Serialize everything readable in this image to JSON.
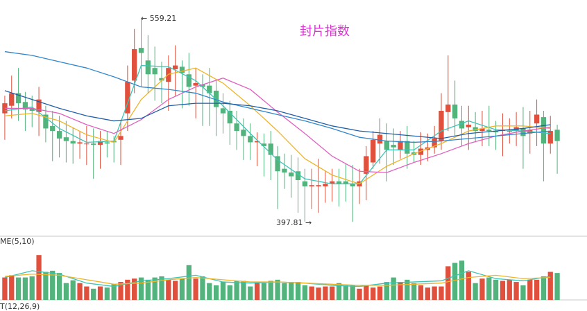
{
  "chart_data": {
    "type": "candlestick",
    "title": "封片指数",
    "title_color": "#d838d0",
    "up_color": "#e0503c",
    "down_color": "#52b47c",
    "ylim": [
      387,
      574
    ],
    "open": [
      484,
      490,
      500,
      493,
      488,
      485,
      483,
      474,
      470,
      465,
      462,
      460,
      460,
      460,
      459,
      461,
      462,
      463,
      484,
      510,
      536,
      526,
      520,
      512,
      509,
      519,
      521,
      515,
      506,
      507,
      506,
      502,
      488,
      486,
      476,
      471,
      466,
      461,
      460,
      460,
      450,
      440,
      437,
      438,
      430,
      426,
      426,
      426,
      428,
      430,
      430,
      428,
      426,
      436,
      445,
      460,
      462,
      459,
      455,
      462,
      453,
      451,
      455,
      457,
      462,
      485,
      491,
      478,
      473,
      473,
      470,
      471,
      470,
      470,
      470,
      470,
      472,
      468,
      476,
      481,
      460,
      471
    ],
    "close": [
      492,
      500,
      492,
      487,
      486,
      495,
      472,
      470,
      464,
      462,
      460,
      461,
      460,
      459,
      462,
      460,
      461,
      466,
      509,
      535,
      532,
      515,
      515,
      510,
      520,
      522,
      516,
      505,
      508,
      505,
      500,
      489,
      484,
      476,
      470,
      466,
      461,
      462,
      458,
      451,
      438,
      437,
      434,
      431,
      426,
      427,
      427,
      428,
      430,
      428,
      428,
      426,
      430,
      450,
      463,
      467,
      455,
      457,
      462,
      452,
      451,
      456,
      457,
      464,
      486,
      491,
      480,
      472,
      475,
      470,
      472,
      470,
      469,
      471,
      470,
      473,
      466,
      471,
      483,
      460,
      470,
      462
    ],
    "high": [
      498,
      514,
      520,
      501,
      498,
      505,
      490,
      486,
      482,
      478,
      473,
      470,
      474,
      472,
      470,
      470,
      466,
      478,
      522,
      551,
      559.21,
      546,
      537,
      525,
      530,
      538,
      526,
      532,
      520,
      515,
      520,
      510,
      500,
      494,
      486,
      480,
      476,
      469,
      468,
      470,
      458,
      452,
      451,
      449,
      440,
      440,
      448,
      438,
      440,
      440,
      444,
      443,
      440,
      458,
      470,
      480,
      476,
      472,
      470,
      474,
      462,
      469,
      468,
      474,
      500,
      530,
      510,
      490,
      490,
      485,
      486,
      490,
      478,
      484,
      480,
      485,
      489,
      486,
      495,
      486,
      482,
      475
    ],
    "low": [
      463,
      480,
      478,
      470,
      473,
      466,
      461,
      446,
      449,
      445,
      444,
      448,
      443,
      432,
      440,
      449,
      445,
      443,
      470,
      500,
      505,
      500,
      494,
      492,
      486,
      498,
      488,
      490,
      480,
      474,
      474,
      466,
      468,
      459,
      455,
      447,
      447,
      442,
      434,
      431,
      408,
      424,
      417,
      405,
      398,
      408,
      405,
      413,
      414,
      410,
      414,
      397.81,
      412,
      415,
      440,
      444,
      430,
      443,
      448,
      440,
      445,
      443,
      446,
      452,
      455,
      470,
      466,
      458,
      455,
      461,
      458,
      458,
      455,
      450,
      460,
      458,
      440,
      452,
      458,
      430,
      452,
      436
    ],
    "volume": [
      40,
      44,
      40,
      40,
      42,
      80,
      50,
      52,
      48,
      30,
      35,
      30,
      24,
      20,
      24,
      22,
      28,
      32,
      36,
      38,
      40,
      36,
      40,
      42,
      36,
      34,
      38,
      62,
      38,
      42,
      30,
      26,
      32,
      26,
      34,
      34,
      24,
      32,
      30,
      34,
      36,
      30,
      32,
      32,
      26,
      24,
      22,
      24,
      24,
      30,
      26,
      26,
      20,
      26,
      22,
      24,
      32,
      40,
      32,
      36,
      30,
      26,
      22,
      24,
      24,
      60,
      66,
      70,
      50,
      30,
      38,
      40,
      36,
      34,
      36,
      32,
      26,
      36,
      36,
      42,
      50,
      48
    ],
    "volume_ylim": [
      0,
      100
    ],
    "ma_lines": [
      {
        "color": "#3cc4b4",
        "x": [
          0,
          4,
          8,
          12,
          16,
          20,
          24,
          28,
          32,
          36,
          40,
          44,
          48,
          52,
          56,
          60,
          64,
          68,
          72,
          76,
          80
        ],
        "values": [
          486,
          489,
          472,
          461,
          462,
          522,
          521,
          510,
          490,
          468,
          447,
          432,
          428,
          428,
          455,
          455,
          470,
          478,
          471,
          470,
          468
        ]
      },
      {
        "color": "#f0b428",
        "x": [
          0,
          4,
          8,
          12,
          16,
          20,
          24,
          28,
          32,
          36,
          40,
          44,
          48,
          52,
          56,
          60,
          64,
          68,
          72,
          76,
          80
        ],
        "values": [
          482,
          484,
          478,
          467,
          461,
          495,
          515,
          520,
          508,
          490,
          470,
          448,
          435,
          428,
          442,
          452,
          460,
          470,
          474,
          474,
          472
        ]
      },
      {
        "color": "#e060c0",
        "x": [
          0,
          4,
          8,
          12,
          16,
          20,
          24,
          28,
          32,
          36,
          40,
          44,
          48,
          52,
          56,
          60,
          64,
          68,
          72,
          76,
          80
        ],
        "values": [
          488,
          488,
          484,
          475,
          468,
          479,
          495,
          505,
          512,
          503,
          485,
          468,
          450,
          438,
          437,
          445,
          452,
          460,
          466,
          470,
          473
        ]
      },
      {
        "color": "#2f86cc",
        "x": [
          0,
          4,
          8,
          12,
          16,
          20,
          24,
          28,
          32,
          36,
          40,
          44,
          48,
          52,
          56,
          60,
          64,
          68,
          72,
          76,
          80
        ],
        "values": [
          533,
          530,
          525,
          520,
          513,
          505,
          503,
          500,
          493,
          488,
          483,
          478,
          472,
          465,
          462,
          461,
          462,
          464,
          466,
          468,
          470
        ]
      },
      {
        "color": "#1f5fa8",
        "x": [
          0,
          4,
          8,
          12,
          16,
          20,
          24,
          28,
          32,
          36,
          40,
          44,
          48,
          52,
          56,
          60,
          64,
          68,
          72,
          76,
          80
        ],
        "values": [
          502,
          495,
          488,
          482,
          478,
          480,
          490,
          492,
          492,
          490,
          486,
          480,
          474,
          470,
          468,
          466,
          464,
          468,
          470,
          472,
          475
        ]
      }
    ],
    "volume_ma_lines": [
      {
        "color": "#3cc4b4",
        "x": [
          0,
          4,
          8,
          12,
          16,
          20,
          24,
          28,
          32,
          36,
          40,
          44,
          48,
          52,
          56,
          60,
          64,
          68,
          72,
          76,
          80
        ],
        "values": [
          40,
          52,
          46,
          30,
          24,
          34,
          38,
          44,
          32,
          30,
          32,
          30,
          26,
          24,
          30,
          32,
          34,
          52,
          38,
          34,
          42
        ]
      },
      {
        "color": "#f0b428",
        "x": [
          0,
          4,
          8,
          12,
          16,
          20,
          24,
          28,
          32,
          36,
          40,
          44,
          48,
          52,
          56,
          60,
          64,
          68,
          72,
          76,
          80
        ],
        "values": [
          42,
          46,
          44,
          36,
          28,
          30,
          36,
          40,
          36,
          32,
          32,
          30,
          28,
          26,
          26,
          28,
          30,
          40,
          44,
          38,
          40
        ]
      }
    ],
    "annotations": [
      "← 559.21",
      "397.81 →"
    ],
    "volume_label": "ME(5,10)",
    "macd_label": "T(12,26,9)"
  }
}
